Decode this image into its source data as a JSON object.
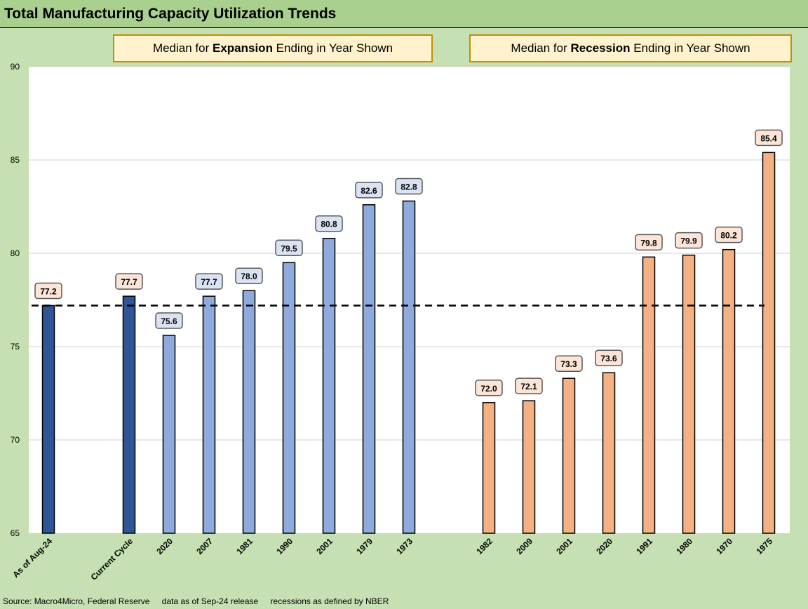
{
  "title": "Total Manufacturing Capacity Utilization Trends",
  "boxes": {
    "expansion": {
      "pre": "Median for ",
      "bold": "Expansion",
      "post": " Ending in Year Shown"
    },
    "recession": {
      "pre": "Median for ",
      "bold": "Recession",
      "post": " Ending in Year Shown"
    }
  },
  "source": {
    "part1": "Source: Macro4Micro, Federal Reserve",
    "part2": "data as of Sep-24 release",
    "part3": "recessions as defined by NBER"
  },
  "colors": {
    "current": "#2f5597",
    "expansion": "#8faadc",
    "recession": "#f4b183",
    "label_blue_fill": "#dae3f3",
    "label_peach_fill": "#fce4d6",
    "plot_bg": "#ffffff",
    "frame_bg": "#c6e0b4",
    "title_bg": "#a9d08e"
  },
  "chart_data": {
    "type": "bar",
    "ylim": [
      65,
      90
    ],
    "yticks": [
      65,
      70,
      75,
      80,
      85,
      90
    ],
    "grid": true,
    "reference_line": {
      "value": 77.2,
      "style": "dashed"
    },
    "categories": [
      "As of Aug-24",
      "Current Cycle",
      "2020",
      "2007",
      "1981",
      "1990",
      "2001",
      "1979",
      "1973",
      "1982",
      "2009",
      "2001",
      "2020",
      "1991",
      "1980",
      "1970",
      "1975"
    ],
    "values": [
      77.2,
      77.7,
      75.6,
      77.7,
      78.0,
      79.5,
      80.8,
      82.6,
      82.8,
      72.0,
      72.1,
      73.3,
      73.6,
      79.8,
      79.9,
      80.2,
      85.4
    ],
    "labels": [
      "77.2",
      "77.7",
      "75.6",
      "77.7",
      "78.0",
      "79.5",
      "80.8",
      "82.6",
      "82.8",
      "72.0",
      "72.1",
      "73.3",
      "73.6",
      "79.8",
      "79.9",
      "80.2",
      "85.4"
    ],
    "groups": [
      "current",
      "current",
      "expansion",
      "expansion",
      "expansion",
      "expansion",
      "expansion",
      "expansion",
      "expansion",
      "recession",
      "recession",
      "recession",
      "recession",
      "recession",
      "recession",
      "recession",
      "recession"
    ],
    "label_styles": [
      "peach",
      "peach",
      "blue",
      "blue",
      "blue",
      "blue",
      "blue",
      "blue",
      "blue",
      "peach",
      "peach",
      "peach",
      "peach",
      "peach",
      "peach",
      "peach",
      "peach"
    ]
  }
}
